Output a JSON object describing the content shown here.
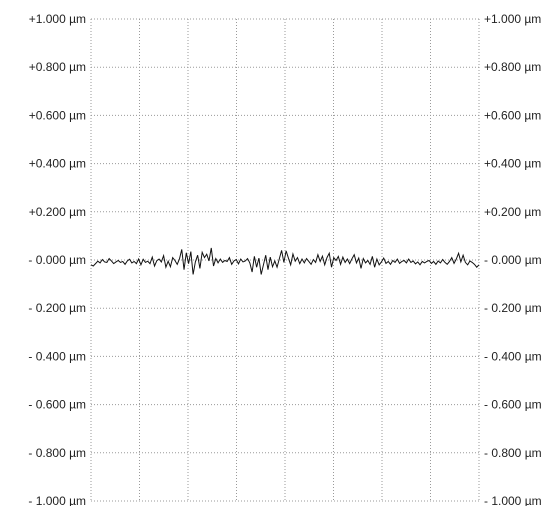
{
  "chart_data": {
    "type": "line",
    "title": "",
    "xlabel": "",
    "ylabel": "",
    "ylim": [
      -1.0,
      1.0
    ],
    "y_ticks": [
      1.0,
      0.8,
      0.6,
      0.4,
      0.2,
      0.0,
      -0.2,
      -0.4,
      -0.6,
      -0.8,
      -1.0
    ],
    "y_tick_labels": [
      "+1.000 µm",
      "+0.800 µm",
      "+0.600 µm",
      "+0.400 µm",
      "+0.200 µm",
      "- 0.000 µm",
      "- 0.200 µm",
      "- 0.400 µm",
      "- 0.600 µm",
      "- 0.800 µm",
      "- 1.000 µm"
    ],
    "x_divisions": 8,
    "grid": true,
    "grid_style": "dotted",
    "line_color": "#111111",
    "grid_color": "#9a9a9a",
    "series": [
      {
        "values": [
          -0.02,
          -0.025,
          -0.015,
          -0.005,
          -0.012,
          0.002,
          -0.008,
          -0.01,
          0.006,
          -0.004,
          -0.015,
          -0.008,
          -0.002,
          -0.01,
          -0.006,
          -0.018,
          -0.004,
          0.003,
          -0.012,
          -0.006,
          -0.015,
          0.004,
          -0.02,
          0.003,
          -0.01,
          -0.005,
          -0.015,
          0.012,
          -0.025,
          -0.003,
          0.004,
          -0.008,
          0.018,
          -0.03,
          -0.005,
          -0.028,
          0.01,
          -0.002,
          -0.018,
          0.005,
          0.044,
          -0.04,
          0.03,
          -0.015,
          0.035,
          -0.06,
          -0.008,
          0.02,
          -0.035,
          0.032,
          0.01,
          0.024,
          -0.004,
          0.05,
          -0.025,
          0.006,
          -0.012,
          0.004,
          -0.01,
          -0.002,
          -0.006,
          0.01,
          -0.018,
          -0.004,
          0.002,
          -0.016,
          0.004,
          -0.008,
          -0.004,
          0.006,
          -0.012,
          -0.05,
          0.015,
          -0.03,
          0.008,
          -0.06,
          -0.02,
          0.02,
          -0.04,
          0.012,
          -0.028,
          -0.004,
          -0.03,
          0.005,
          0.04,
          -0.01,
          0.038,
          0.008,
          -0.02,
          0.025,
          -0.005,
          0.01,
          -0.015,
          0.004,
          -0.012,
          0.006,
          -0.006,
          -0.018,
          0.002,
          -0.01,
          0.022,
          -0.006,
          0.016,
          -0.02,
          0.01,
          0.028,
          -0.03,
          0.01,
          -0.002,
          0.015,
          -0.018,
          0.012,
          -0.01,
          0.004,
          -0.015,
          0.005,
          0.022,
          -0.012,
          0.008,
          -0.035,
          0.006,
          -0.012,
          -0.002,
          -0.018,
          0.015,
          -0.03,
          0.004,
          -0.02,
          -0.008,
          0.008,
          -0.014,
          -0.006,
          -0.018,
          -0.002,
          -0.01,
          0.004,
          -0.014,
          -0.006,
          -0.002,
          -0.012,
          0.004,
          -0.01,
          -0.004,
          -0.016,
          -0.008,
          -0.02,
          -0.006,
          -0.012,
          -0.006,
          -0.002,
          -0.014,
          -0.006,
          -0.018,
          -0.004,
          -0.012,
          0.002,
          -0.01,
          -0.018,
          -0.006,
          0.01,
          -0.014,
          0.004,
          0.028,
          -0.008,
          0.02,
          -0.01,
          -0.02,
          -0.004,
          -0.01,
          -0.018,
          -0.03,
          -0.02
        ]
      }
    ]
  }
}
